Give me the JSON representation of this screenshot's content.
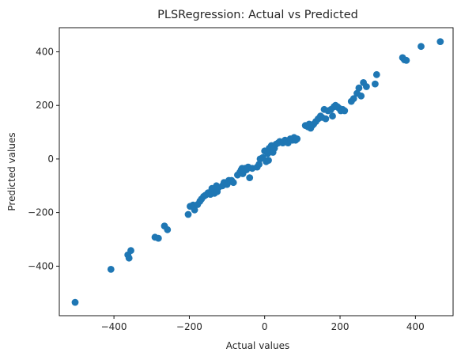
{
  "chart_data": {
    "type": "scatter",
    "title": "PLSRegression: Actual vs Predicted",
    "xlabel": "Actual values",
    "ylabel": "Predicted values",
    "xlim": [
      -545,
      500
    ],
    "ylim": [
      -585,
      490
    ],
    "xticks": [
      -400,
      -200,
      0,
      200,
      400
    ],
    "yticks": [
      -400,
      -200,
      0,
      200,
      400
    ],
    "xtick_labels": [
      "−400",
      "−200",
      "0",
      "200",
      "400"
    ],
    "ytick_labels": [
      "−400",
      "−200",
      "0",
      "200",
      "400"
    ],
    "grid": false,
    "marker_color": "#1f77b4",
    "series": [
      {
        "x": [
          -503,
          -408,
          -363,
          -360,
          -355,
          -291,
          -282,
          -266,
          -258,
          -203,
          -198,
          -190,
          -186,
          -178,
          -172,
          -168,
          -162,
          -157,
          -150,
          -144,
          -140,
          -133,
          -128,
          -126,
          -122,
          -112,
          -108,
          -100,
          -95,
          -91,
          -88,
          -83,
          -72,
          -66,
          -62,
          -60,
          -58,
          -55,
          -52,
          -48,
          -44,
          -40,
          -33,
          -20,
          -15,
          -12,
          -5,
          0,
          4,
          8,
          10,
          12,
          15,
          18,
          22,
          26,
          30,
          36,
          40,
          48,
          54,
          58,
          62,
          68,
          74,
          78,
          82,
          86,
          108,
          115,
          118,
          122,
          126,
          130,
          136,
          142,
          148,
          152,
          158,
          162,
          168,
          176,
          180,
          184,
          188,
          193,
          197,
          202,
          207,
          212,
          230,
          236,
          245,
          250,
          256,
          262,
          270,
          293,
          297,
          366,
          371,
          376,
          415,
          466
        ],
        "y": [
          -535,
          -412,
          -358,
          -370,
          -342,
          -292,
          -296,
          -250,
          -264,
          -207,
          -177,
          -172,
          -190,
          -170,
          -158,
          -150,
          -140,
          -135,
          -126,
          -132,
          -110,
          -128,
          -100,
          -122,
          -106,
          -100,
          -88,
          -95,
          -80,
          -84,
          -80,
          -88,
          -60,
          -50,
          -40,
          -35,
          -55,
          -45,
          -35,
          -40,
          -30,
          -70,
          -35,
          -30,
          -20,
          0,
          5,
          30,
          -10,
          20,
          -5,
          40,
          30,
          50,
          25,
          40,
          55,
          60,
          65,
          60,
          70,
          65,
          60,
          75,
          70,
          80,
          70,
          75,
          125,
          120,
          130,
          115,
          125,
          130,
          140,
          150,
          160,
          155,
          185,
          150,
          180,
          185,
          160,
          195,
          200,
          195,
          190,
          180,
          185,
          180,
          215,
          225,
          245,
          265,
          235,
          285,
          270,
          280,
          315,
          378,
          370,
          368,
          420,
          438
        ]
      }
    ]
  }
}
